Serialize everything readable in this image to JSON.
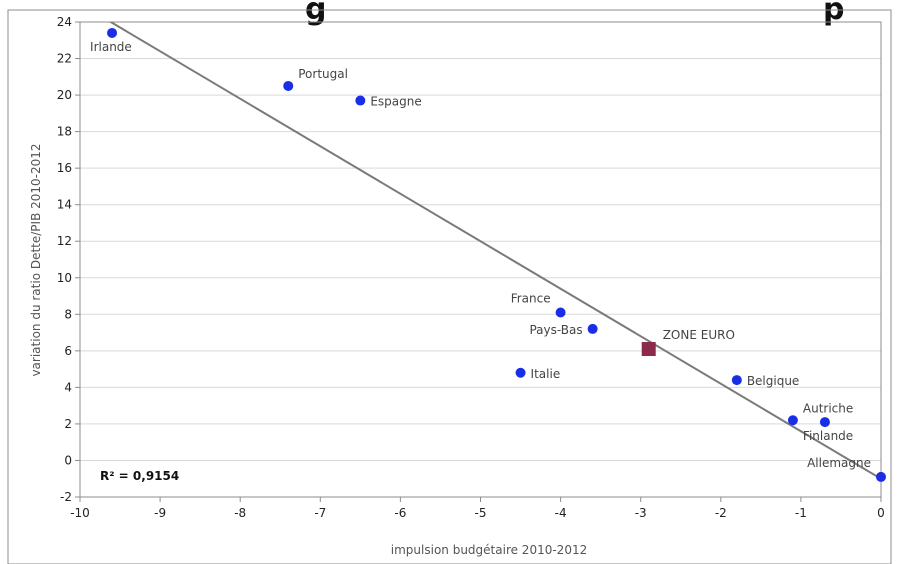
{
  "chart_data": {
    "type": "scatter",
    "title_fragment": "g",
    "title_fragment_right": "p",
    "xlabel": "impulsion budgétaire 2010-2012",
    "ylabel": "variation du ratio Dette/PIB 2010-2012",
    "xlim": [
      -10,
      0
    ],
    "ylim": [
      -2,
      24
    ],
    "x_ticks": [
      -10,
      -9,
      -8,
      -7,
      -6,
      -5,
      -4,
      -3,
      -2,
      -1,
      0
    ],
    "y_ticks": [
      -2,
      0,
      2,
      4,
      6,
      8,
      10,
      12,
      14,
      16,
      18,
      20,
      22,
      24
    ],
    "grid": "horizontal",
    "r2_label": "R² = 0,9154",
    "trendline": {
      "x": [
        -10,
        0
      ],
      "y": [
        25.0,
        -1.0
      ]
    },
    "points": [
      {
        "label": "Irlande",
        "x": -9.6,
        "y": 23.4,
        "label_pos": "below"
      },
      {
        "label": "Portugal",
        "x": -7.4,
        "y": 20.5,
        "label_pos": "above-right"
      },
      {
        "label": "Espagne",
        "x": -6.5,
        "y": 19.7,
        "label_pos": "right"
      },
      {
        "label": "France",
        "x": -4.0,
        "y": 8.1,
        "label_pos": "above-left"
      },
      {
        "label": "Pays-Bas",
        "x": -3.6,
        "y": 7.2,
        "label_pos": "left"
      },
      {
        "label": "Italie",
        "x": -4.5,
        "y": 4.8,
        "label_pos": "right"
      },
      {
        "label": "Belgique",
        "x": -1.8,
        "y": 4.4,
        "label_pos": "right"
      },
      {
        "label": "Autriche",
        "x": -1.1,
        "y": 2.2,
        "label_pos": "above-right"
      },
      {
        "label": "Finlande",
        "x": -0.7,
        "y": 2.1,
        "label_pos": "below"
      },
      {
        "label": "Allemagne",
        "x": 0.0,
        "y": -0.9,
        "label_pos": "above-left"
      }
    ],
    "highlight_point": {
      "label": "ZONE EURO",
      "x": -2.9,
      "y": 6.1,
      "label_pos": "above-right"
    },
    "colors": {
      "point": "#1a2ee6",
      "highlight": "#8b2a4a",
      "trendline": "#7a7a7a",
      "grid": "#d9d9d9",
      "frame": "#8c8c8c"
    }
  }
}
